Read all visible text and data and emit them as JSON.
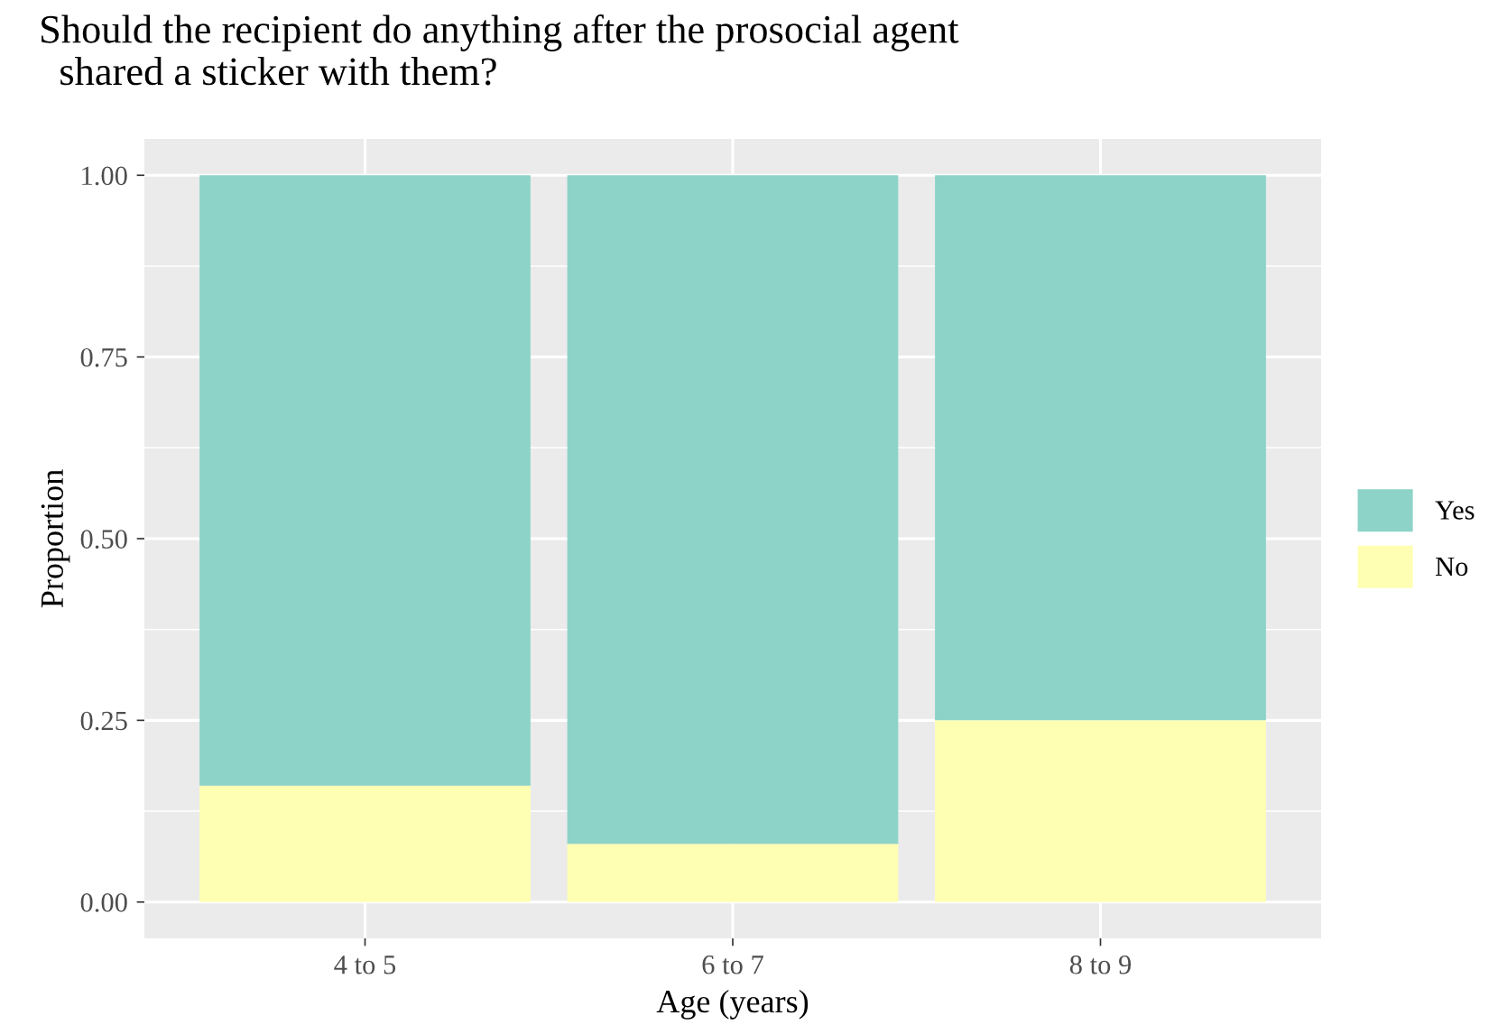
{
  "chart_data": {
    "type": "bar",
    "title": "Should the recipient do anything after the prosocial agent\n  shared a sticker with them?",
    "xlabel": "Age (years)",
    "ylabel": "Proportion",
    "categories": [
      "4 to 5",
      "6 to 7",
      "8 to 9"
    ],
    "stacked": true,
    "series": [
      {
        "name": "No",
        "color": "#ffffb3",
        "values": [
          0.16,
          0.08,
          0.25
        ]
      },
      {
        "name": "Yes",
        "color": "#8dd3c7",
        "values": [
          0.84,
          0.92,
          0.75
        ]
      }
    ],
    "ylim": [
      -0.05,
      1.05
    ],
    "yticks": [
      {
        "value": 0,
        "label": "0.00"
      },
      {
        "value": 0.25,
        "label": "0.25"
      },
      {
        "value": 0.5,
        "label": "0.50"
      },
      {
        "value": 0.75,
        "label": "0.75"
      },
      {
        "value": 1,
        "label": "1.00"
      }
    ],
    "grid": true,
    "legend": "right"
  }
}
